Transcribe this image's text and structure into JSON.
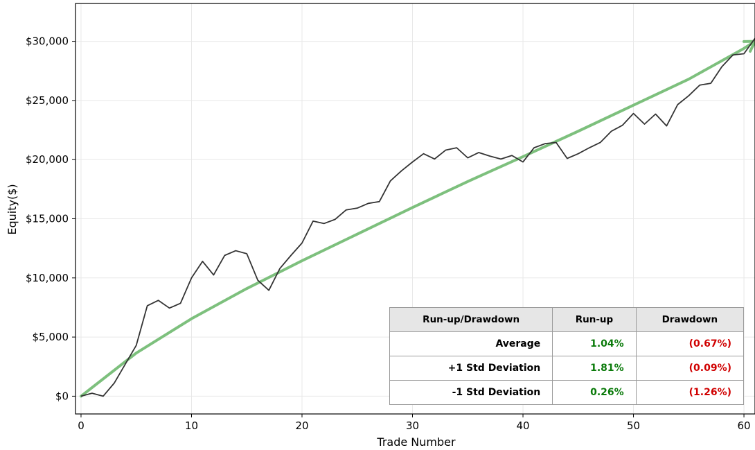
{
  "chart_data": {
    "type": "line",
    "xlabel": "Trade Number",
    "ylabel": "Equity($)",
    "xlim": [
      -0.5,
      61
    ],
    "ylim": [
      -1500,
      33200
    ],
    "xticks": [
      0,
      10,
      20,
      30,
      40,
      50,
      60
    ],
    "yticks": [
      0,
      5000,
      10000,
      15000,
      20000,
      25000,
      30000
    ],
    "ytick_labels": [
      "$0",
      "$5,000",
      "$10,000",
      "$15,000",
      "$20,000",
      "$25,000",
      "$30,000"
    ],
    "grid": true,
    "series": [
      {
        "color": "#333333",
        "x": [
          0,
          1,
          2,
          3,
          4,
          5,
          6,
          7,
          8,
          9,
          10,
          11,
          12,
          13,
          14,
          15,
          16,
          17,
          18,
          19,
          20,
          21,
          22,
          23,
          24,
          25,
          26,
          27,
          28,
          29,
          30,
          31,
          32,
          33,
          34,
          35,
          36,
          37,
          38,
          39,
          40,
          41,
          42,
          43,
          44,
          45,
          46,
          47,
          48,
          49,
          50,
          51,
          52,
          53,
          54,
          55,
          56,
          57,
          58,
          59,
          60,
          61
        ],
        "y": [
          0,
          250,
          0,
          1100,
          2700,
          4300,
          7650,
          8100,
          7450,
          7850,
          10000,
          11400,
          10250,
          11900,
          12300,
          12050,
          9800,
          8950,
          10800,
          11900,
          12950,
          14800,
          14600,
          14950,
          15750,
          15900,
          16300,
          16450,
          18200,
          19050,
          19800,
          20500,
          20050,
          20800,
          21000,
          20150,
          20600,
          20300,
          20050,
          20350,
          19800,
          21000,
          21350,
          21450,
          20100,
          20500,
          21000,
          21450,
          22400,
          22900,
          23900,
          23000,
          23850,
          22850,
          24650,
          25400,
          26300,
          26450,
          27850,
          28850,
          28950,
          30250
        ]
      },
      {
        "color": "#7dc07d",
        "type": "trend-curve",
        "x": [
          0,
          5,
          10,
          15,
          20,
          25,
          30,
          35,
          40,
          45,
          50,
          55,
          60,
          61
        ],
        "y": [
          0,
          3650,
          6550,
          9100,
          11450,
          13700,
          15950,
          18150,
          20250,
          22400,
          24600,
          26800,
          29400,
          30000
        ]
      }
    ],
    "table": {
      "headers": [
        "Run-up/Drawdown",
        "Run-up",
        "Drawdown"
      ],
      "rows": [
        {
          "label": "Average",
          "runup": "1.04%",
          "drawdown": "(0.67%)"
        },
        {
          "label": "+1 Std Deviation",
          "runup": "1.81%",
          "drawdown": "(0.09%)"
        },
        {
          "label": "-1 Std Deviation",
          "runup": "0.26%",
          "drawdown": "(1.26%)"
        }
      ],
      "runup_color": "#0a7a0a",
      "drawdown_color": "#d00000"
    }
  }
}
